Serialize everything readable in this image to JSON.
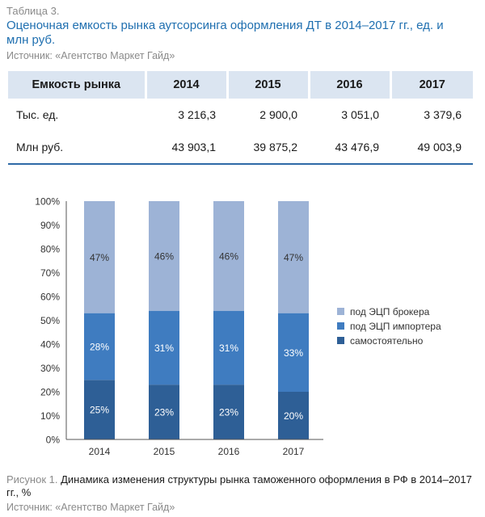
{
  "table": {
    "caption": "Таблица 3.",
    "title": "Оценочная емкость рынка аутсорсинга оформления ДТ в 2014–2017 гг., ед. и млн руб.",
    "source": "Источник: «Агентство Маркет Гайд»",
    "headers": [
      "Емкость рынка",
      "2014",
      "2015",
      "2016",
      "2017"
    ],
    "rows": [
      {
        "label": "Тыс. ед.",
        "values": [
          "3 216,3",
          "2 900,0",
          "3 051,0",
          "3 379,6"
        ]
      },
      {
        "label": "Млн руб.",
        "values": [
          "43 903,1",
          "39 875,2",
          "43 476,9",
          "49 003,9"
        ]
      }
    ]
  },
  "figure": {
    "caption_number": "Рисунок 1.",
    "caption_text": "Динамика изменения структуры рынка таможенного оформления в РФ в 2014–2017 гг., %",
    "source": "Источник: «Агентство Маркет Гайд»"
  },
  "chart_data": {
    "type": "bar",
    "stacked": true,
    "categories": [
      "2014",
      "2015",
      "2016",
      "2017"
    ],
    "series": [
      {
        "name": "самостоятельно",
        "values": [
          25,
          23,
          23,
          20
        ],
        "labels": [
          "25%",
          "23%",
          "23%",
          "20%"
        ],
        "color": "#2e5f96"
      },
      {
        "name": "под ЭЦП импортера",
        "values": [
          28,
          31,
          31,
          33
        ],
        "labels": [
          "28%",
          "31%",
          "31%",
          "33%"
        ],
        "color": "#3f7cc0"
      },
      {
        "name": "под ЭЦП брокера",
        "values": [
          47,
          46,
          46,
          47
        ],
        "labels": [
          "47%",
          "46%",
          "46%",
          "47%"
        ],
        "color": "#9db3d6"
      }
    ],
    "ylim": [
      0,
      100
    ],
    "yticks": [
      "0%",
      "10%",
      "20%",
      "30%",
      "40%",
      "50%",
      "60%",
      "70%",
      "80%",
      "90%",
      "100%"
    ],
    "legend_order": [
      "под ЭЦП брокера",
      "под ЭЦП импортера",
      "самостоятельно"
    ],
    "legend_position": "right",
    "grid": false
  }
}
